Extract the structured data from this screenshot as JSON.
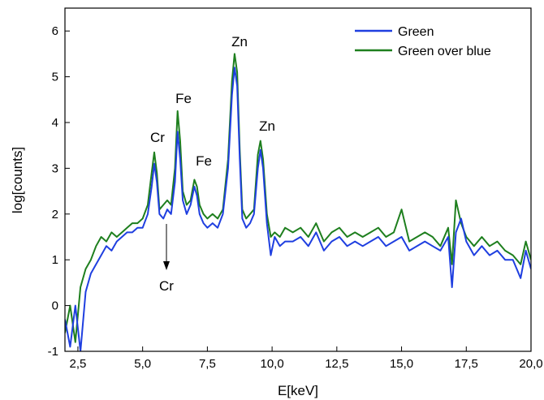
{
  "chart_data": {
    "type": "line",
    "xlabel": "E[keV]",
    "ylabel": "log[counts]",
    "xlim": [
      2.0,
      20.0
    ],
    "ylim": [
      -1,
      6.5
    ],
    "xticks": [
      "2,5",
      "5,0",
      "7,5",
      "10,0",
      "12,5",
      "15,0",
      "17,5",
      "20,0"
    ],
    "xtick_values": [
      2.5,
      5.0,
      7.5,
      10.0,
      12.5,
      15.0,
      17.5,
      20.0
    ],
    "yticks": [
      "-1",
      "0",
      "1",
      "2",
      "3",
      "4",
      "5",
      "6"
    ],
    "ytick_values": [
      -1,
      0,
      1,
      2,
      3,
      4,
      5,
      6
    ],
    "grid": false,
    "legend_position": "top-right",
    "series": [
      {
        "name": "Green",
        "color": "#1f3fe0",
        "x": [
          2.0,
          2.2,
          2.4,
          2.6,
          2.8,
          3.0,
          3.2,
          3.4,
          3.6,
          3.8,
          4.0,
          4.2,
          4.4,
          4.6,
          4.8,
          5.0,
          5.2,
          5.35,
          5.45,
          5.55,
          5.65,
          5.8,
          5.95,
          6.1,
          6.25,
          6.35,
          6.45,
          6.55,
          6.7,
          6.85,
          7.0,
          7.1,
          7.2,
          7.35,
          7.5,
          7.7,
          7.9,
          8.1,
          8.3,
          8.45,
          8.55,
          8.65,
          8.75,
          8.85,
          9.0,
          9.15,
          9.3,
          9.45,
          9.55,
          9.65,
          9.8,
          9.95,
          10.1,
          10.3,
          10.5,
          10.8,
          11.1,
          11.4,
          11.7,
          12.0,
          12.3,
          12.6,
          12.9,
          13.2,
          13.5,
          13.8,
          14.1,
          14.4,
          14.7,
          15.0,
          15.3,
          15.6,
          15.9,
          16.2,
          16.5,
          16.8,
          16.95,
          17.1,
          17.3,
          17.5,
          17.8,
          18.1,
          18.4,
          18.7,
          19.0,
          19.3,
          19.6,
          19.8,
          20.0
        ],
        "values": [
          -0.3,
          -0.9,
          0.0,
          -1.0,
          0.3,
          0.7,
          0.9,
          1.1,
          1.3,
          1.2,
          1.4,
          1.5,
          1.6,
          1.6,
          1.7,
          1.7,
          2.0,
          2.6,
          3.1,
          2.7,
          2.0,
          1.9,
          2.1,
          2.0,
          2.7,
          3.8,
          3.2,
          2.3,
          2.0,
          2.2,
          2.6,
          2.4,
          2.0,
          1.8,
          1.7,
          1.8,
          1.7,
          2.0,
          3.0,
          4.6,
          5.2,
          4.8,
          3.2,
          1.9,
          1.7,
          1.8,
          2.0,
          3.0,
          3.4,
          3.0,
          1.8,
          1.1,
          1.5,
          1.3,
          1.4,
          1.4,
          1.5,
          1.3,
          1.6,
          1.2,
          1.4,
          1.5,
          1.3,
          1.4,
          1.3,
          1.4,
          1.5,
          1.3,
          1.4,
          1.5,
          1.2,
          1.3,
          1.4,
          1.3,
          1.2,
          1.5,
          0.4,
          1.6,
          1.9,
          1.4,
          1.1,
          1.3,
          1.1,
          1.2,
          1.0,
          1.0,
          0.6,
          1.2,
          0.8
        ]
      },
      {
        "name": "Green over blue",
        "color": "#1e7f1e",
        "x": [
          2.0,
          2.2,
          2.4,
          2.6,
          2.8,
          3.0,
          3.2,
          3.4,
          3.6,
          3.8,
          4.0,
          4.2,
          4.4,
          4.6,
          4.8,
          5.0,
          5.2,
          5.35,
          5.45,
          5.55,
          5.65,
          5.8,
          5.95,
          6.1,
          6.25,
          6.35,
          6.45,
          6.55,
          6.7,
          6.85,
          7.0,
          7.1,
          7.2,
          7.35,
          7.5,
          7.7,
          7.9,
          8.1,
          8.3,
          8.45,
          8.55,
          8.65,
          8.75,
          8.85,
          9.0,
          9.15,
          9.3,
          9.45,
          9.55,
          9.65,
          9.8,
          9.95,
          10.1,
          10.3,
          10.5,
          10.8,
          11.1,
          11.4,
          11.7,
          12.0,
          12.3,
          12.6,
          12.9,
          13.2,
          13.5,
          13.8,
          14.1,
          14.4,
          14.7,
          15.0,
          15.3,
          15.6,
          15.9,
          16.2,
          16.5,
          16.8,
          16.95,
          17.1,
          17.3,
          17.5,
          17.8,
          18.1,
          18.4,
          18.7,
          19.0,
          19.3,
          19.6,
          19.8,
          20.0
        ],
        "values": [
          -0.6,
          0.0,
          -0.8,
          0.4,
          0.8,
          1.0,
          1.3,
          1.5,
          1.4,
          1.6,
          1.5,
          1.6,
          1.7,
          1.8,
          1.8,
          1.9,
          2.2,
          2.9,
          3.35,
          2.9,
          2.1,
          2.2,
          2.3,
          2.2,
          3.0,
          4.25,
          3.6,
          2.5,
          2.2,
          2.3,
          2.75,
          2.6,
          2.2,
          2.0,
          1.9,
          2.0,
          1.9,
          2.1,
          3.2,
          4.9,
          5.5,
          5.1,
          3.4,
          2.1,
          1.9,
          2.0,
          2.1,
          3.3,
          3.6,
          3.2,
          2.0,
          1.5,
          1.6,
          1.5,
          1.7,
          1.6,
          1.7,
          1.5,
          1.8,
          1.4,
          1.6,
          1.7,
          1.5,
          1.6,
          1.5,
          1.6,
          1.7,
          1.5,
          1.6,
          2.1,
          1.4,
          1.5,
          1.6,
          1.5,
          1.3,
          1.7,
          0.9,
          2.3,
          1.8,
          1.5,
          1.3,
          1.5,
          1.3,
          1.4,
          1.2,
          1.1,
          0.9,
          1.4,
          1.0
        ]
      }
    ],
    "annotations": [
      {
        "text": "Cr",
        "x": 5.45,
        "y": 3.35
      },
      {
        "text": "Fe",
        "x": 6.35,
        "y": 4.25
      },
      {
        "text": "Fe",
        "x": 7.0,
        "y": 2.75
      },
      {
        "text": "Zn",
        "x": 8.55,
        "y": 5.5
      },
      {
        "text": "Zn",
        "x": 9.55,
        "y": 3.6
      },
      {
        "text": "Cr",
        "x": 5.8,
        "y": 0.3
      }
    ]
  }
}
